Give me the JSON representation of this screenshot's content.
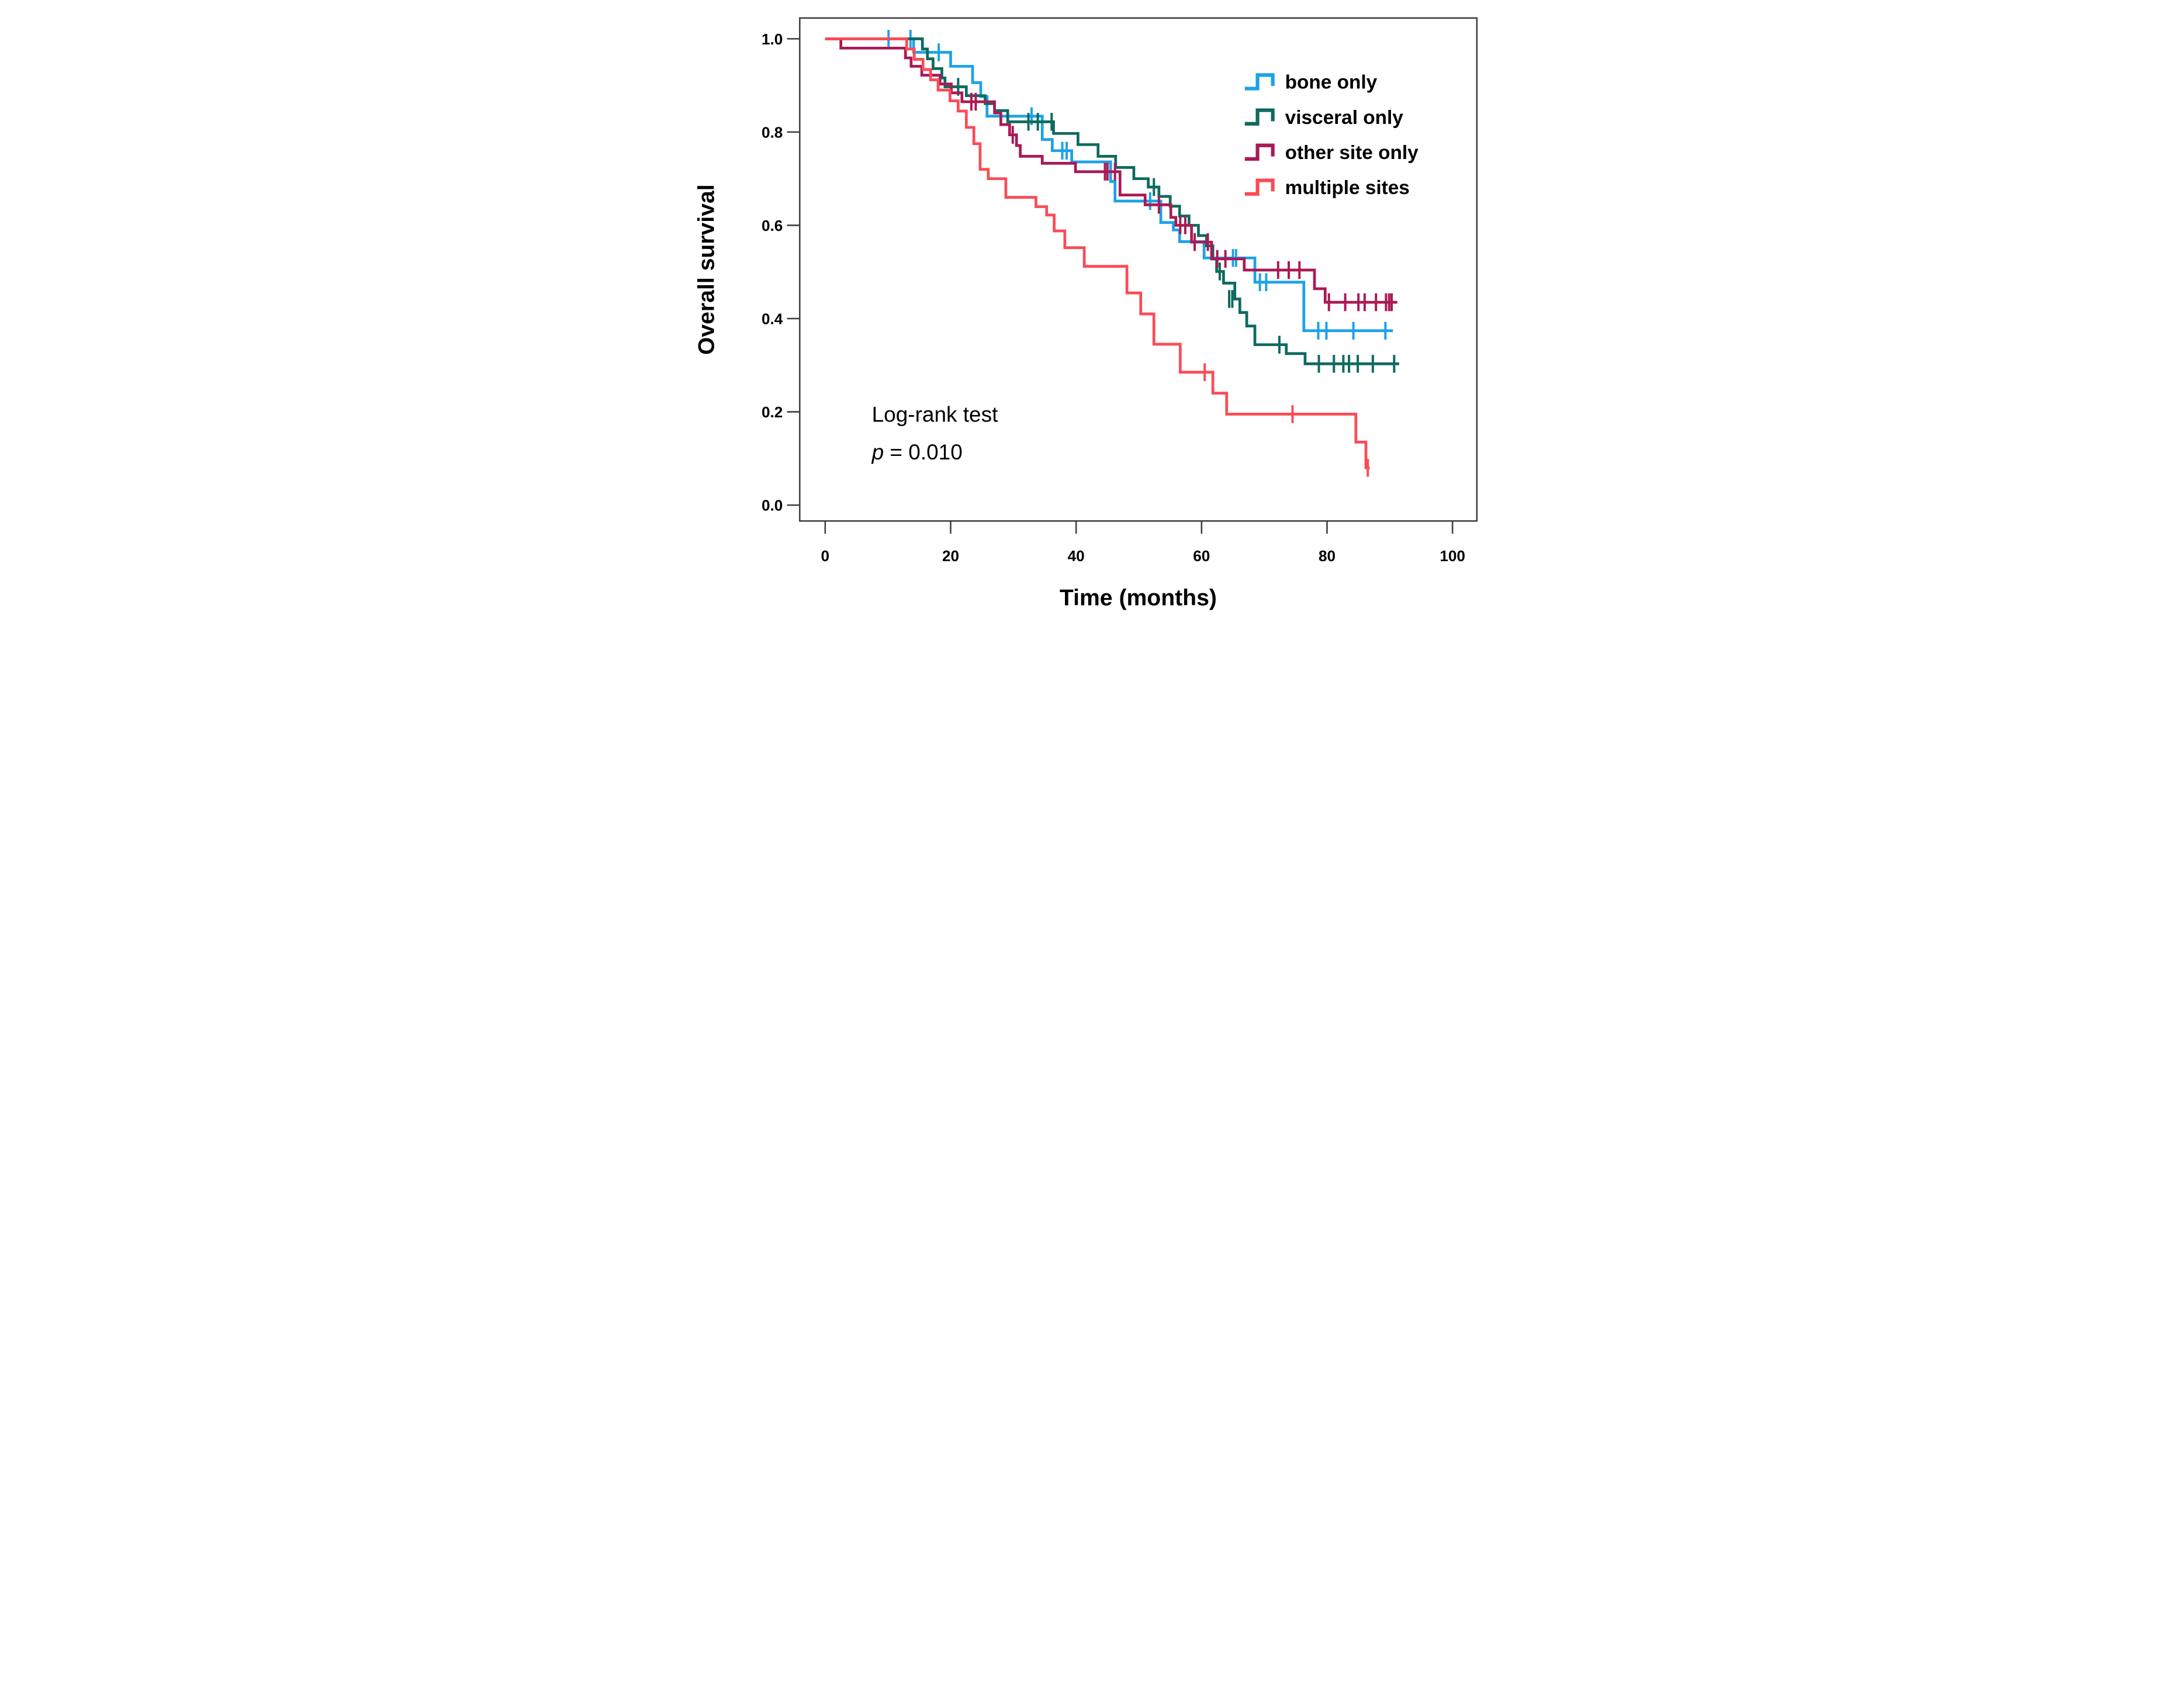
{
  "figure": {
    "background": "#ffffff",
    "frame_color": "#3d3d3d",
    "text_color": "#000000"
  },
  "chart_data": {
    "type": "line",
    "subtype": "kaplan-meier-step-curves",
    "title": "",
    "xlabel": "Time (months)",
    "ylabel": "Overall survival",
    "xlim": [
      0,
      100
    ],
    "ylim": [
      0.0,
      1.0
    ],
    "xtick_values": [
      0,
      20,
      40,
      60,
      80,
      100
    ],
    "xtick_labels": [
      "0",
      "20",
      "40",
      "60",
      "80",
      "100"
    ],
    "ytick_values": [
      0.0,
      0.2,
      0.4,
      0.6,
      0.8,
      1.0
    ],
    "ytick_labels": [
      "0.0",
      "0.2",
      "0.4",
      "0.6",
      "0.8",
      "1.0"
    ],
    "grid": false,
    "legend_position": "upper right",
    "annotation": {
      "line1": "Log-rank test",
      "line2_italic": "p",
      "line2_rest": " = 0.010"
    },
    "series": [
      {
        "name": "bone only",
        "color": "#1CA2E8",
        "end_t": 90.5,
        "steps": [
          [
            0,
            1.0
          ],
          [
            14.1,
            0.971
          ],
          [
            20.0,
            0.941
          ],
          [
            23.5,
            0.906
          ],
          [
            24.8,
            0.876
          ],
          [
            25.8,
            0.834
          ],
          [
            34.6,
            0.784
          ],
          [
            36.2,
            0.76
          ],
          [
            39.3,
            0.736
          ],
          [
            45.5,
            0.694
          ],
          [
            46.2,
            0.652
          ],
          [
            53.5,
            0.606
          ],
          [
            55.5,
            0.59
          ],
          [
            56.5,
            0.565
          ],
          [
            60.4,
            0.53
          ],
          [
            68.5,
            0.478
          ],
          [
            76.3,
            0.374
          ]
        ],
        "censors": [
          [
            10.1,
            1.0
          ],
          [
            13.6,
            1.0
          ],
          [
            18.1,
            0.971
          ],
          [
            32.9,
            0.834
          ],
          [
            37.8,
            0.76
          ],
          [
            38.5,
            0.76
          ],
          [
            51.8,
            0.652
          ],
          [
            65.0,
            0.53
          ],
          [
            65.5,
            0.53
          ],
          [
            69.3,
            0.478
          ],
          [
            70.3,
            0.478
          ],
          [
            78.6,
            0.374
          ],
          [
            79.9,
            0.374
          ],
          [
            84.2,
            0.374
          ],
          [
            89.3,
            0.374
          ]
        ]
      },
      {
        "name": "visceral only",
        "color": "#0E6A5F",
        "end_t": 91.5,
        "steps": [
          [
            0,
            1.0
          ],
          [
            15.5,
            0.978
          ],
          [
            16.3,
            0.957
          ],
          [
            17.2,
            0.936
          ],
          [
            18.6,
            0.916
          ],
          [
            19.1,
            0.897
          ],
          [
            22.5,
            0.878
          ],
          [
            25.5,
            0.861
          ],
          [
            27.0,
            0.846
          ],
          [
            29.1,
            0.822
          ],
          [
            36.4,
            0.797
          ],
          [
            40.3,
            0.773
          ],
          [
            43.5,
            0.748
          ],
          [
            46.3,
            0.724
          ],
          [
            49.2,
            0.7
          ],
          [
            51.5,
            0.682
          ],
          [
            53.2,
            0.662
          ],
          [
            55.0,
            0.641
          ],
          [
            56.5,
            0.62
          ],
          [
            58.0,
            0.6
          ],
          [
            59.5,
            0.578
          ],
          [
            60.8,
            0.556
          ],
          [
            61.8,
            0.528
          ],
          [
            62.4,
            0.501
          ],
          [
            63.5,
            0.476
          ],
          [
            65.3,
            0.442
          ],
          [
            66.1,
            0.413
          ],
          [
            67.2,
            0.384
          ],
          [
            68.5,
            0.344
          ],
          [
            73.5,
            0.325
          ],
          [
            76.5,
            0.303
          ]
        ],
        "censors": [
          [
            21.2,
            0.897
          ],
          [
            32.4,
            0.822
          ],
          [
            33.9,
            0.822
          ],
          [
            36.1,
            0.822
          ],
          [
            52.4,
            0.682
          ],
          [
            62.9,
            0.501
          ],
          [
            64.4,
            0.442
          ],
          [
            64.9,
            0.442
          ],
          [
            72.4,
            0.344
          ],
          [
            78.7,
            0.303
          ],
          [
            81.1,
            0.303
          ],
          [
            82.6,
            0.303
          ],
          [
            83.5,
            0.303
          ],
          [
            84.9,
            0.303
          ],
          [
            87.3,
            0.303
          ],
          [
            90.7,
            0.303
          ]
        ]
      },
      {
        "name": "other site only",
        "color": "#A91A55",
        "end_t": 91.2,
        "steps": [
          [
            0,
            1.0
          ],
          [
            2.5,
            0.98
          ],
          [
            12.8,
            0.959
          ],
          [
            13.7,
            0.941
          ],
          [
            15.4,
            0.922
          ],
          [
            18.3,
            0.903
          ],
          [
            20.1,
            0.884
          ],
          [
            21.8,
            0.865
          ],
          [
            27.0,
            0.841
          ],
          [
            28.0,
            0.816
          ],
          [
            29.4,
            0.794
          ],
          [
            30.5,
            0.771
          ],
          [
            31.1,
            0.748
          ],
          [
            34.6,
            0.733
          ],
          [
            39.9,
            0.715
          ],
          [
            47.0,
            0.665
          ],
          [
            51.0,
            0.644
          ],
          [
            55.1,
            0.617
          ],
          [
            55.9,
            0.6
          ],
          [
            58.4,
            0.564
          ],
          [
            61.6,
            0.528
          ],
          [
            66.8,
            0.504
          ],
          [
            78.0,
            0.464
          ],
          [
            79.7,
            0.435
          ]
        ],
        "censors": [
          [
            23.3,
            0.865
          ],
          [
            24.0,
            0.865
          ],
          [
            29.9,
            0.794
          ],
          [
            44.6,
            0.715
          ],
          [
            45.0,
            0.715
          ],
          [
            46.2,
            0.715
          ],
          [
            53.2,
            0.644
          ],
          [
            56.6,
            0.6
          ],
          [
            57.4,
            0.6
          ],
          [
            58.9,
            0.564
          ],
          [
            61.0,
            0.564
          ],
          [
            62.5,
            0.528
          ],
          [
            63.8,
            0.528
          ],
          [
            72.2,
            0.504
          ],
          [
            73.9,
            0.504
          ],
          [
            75.6,
            0.504
          ],
          [
            80.3,
            0.435
          ],
          [
            82.9,
            0.435
          ],
          [
            85.0,
            0.435
          ],
          [
            86.0,
            0.435
          ],
          [
            87.8,
            0.435
          ],
          [
            89.4,
            0.435
          ],
          [
            89.9,
            0.435
          ],
          [
            90.3,
            0.435
          ]
        ]
      },
      {
        "name": "multiple sites",
        "color": "#FB4B55",
        "end_t": 86.8,
        "steps": [
          [
            0,
            1.0
          ],
          [
            13.0,
            0.978
          ],
          [
            14.2,
            0.956
          ],
          [
            15.6,
            0.934
          ],
          [
            16.8,
            0.912
          ],
          [
            18.0,
            0.89
          ],
          [
            19.9,
            0.867
          ],
          [
            21.2,
            0.845
          ],
          [
            22.5,
            0.81
          ],
          [
            23.7,
            0.775
          ],
          [
            24.7,
            0.72
          ],
          [
            26.0,
            0.7
          ],
          [
            28.8,
            0.66
          ],
          [
            33.6,
            0.64
          ],
          [
            35.3,
            0.622
          ],
          [
            36.5,
            0.588
          ],
          [
            38.2,
            0.552
          ],
          [
            41.3,
            0.512
          ],
          [
            48.1,
            0.455
          ],
          [
            50.3,
            0.41
          ],
          [
            52.4,
            0.345
          ],
          [
            56.6,
            0.285
          ],
          [
            61.8,
            0.24
          ],
          [
            64.0,
            0.195
          ],
          [
            84.6,
            0.135
          ],
          [
            86.2,
            0.08
          ]
        ],
        "censors": [
          [
            60.5,
            0.285
          ],
          [
            74.5,
            0.195
          ],
          [
            86.5,
            0.08
          ]
        ]
      }
    ]
  }
}
